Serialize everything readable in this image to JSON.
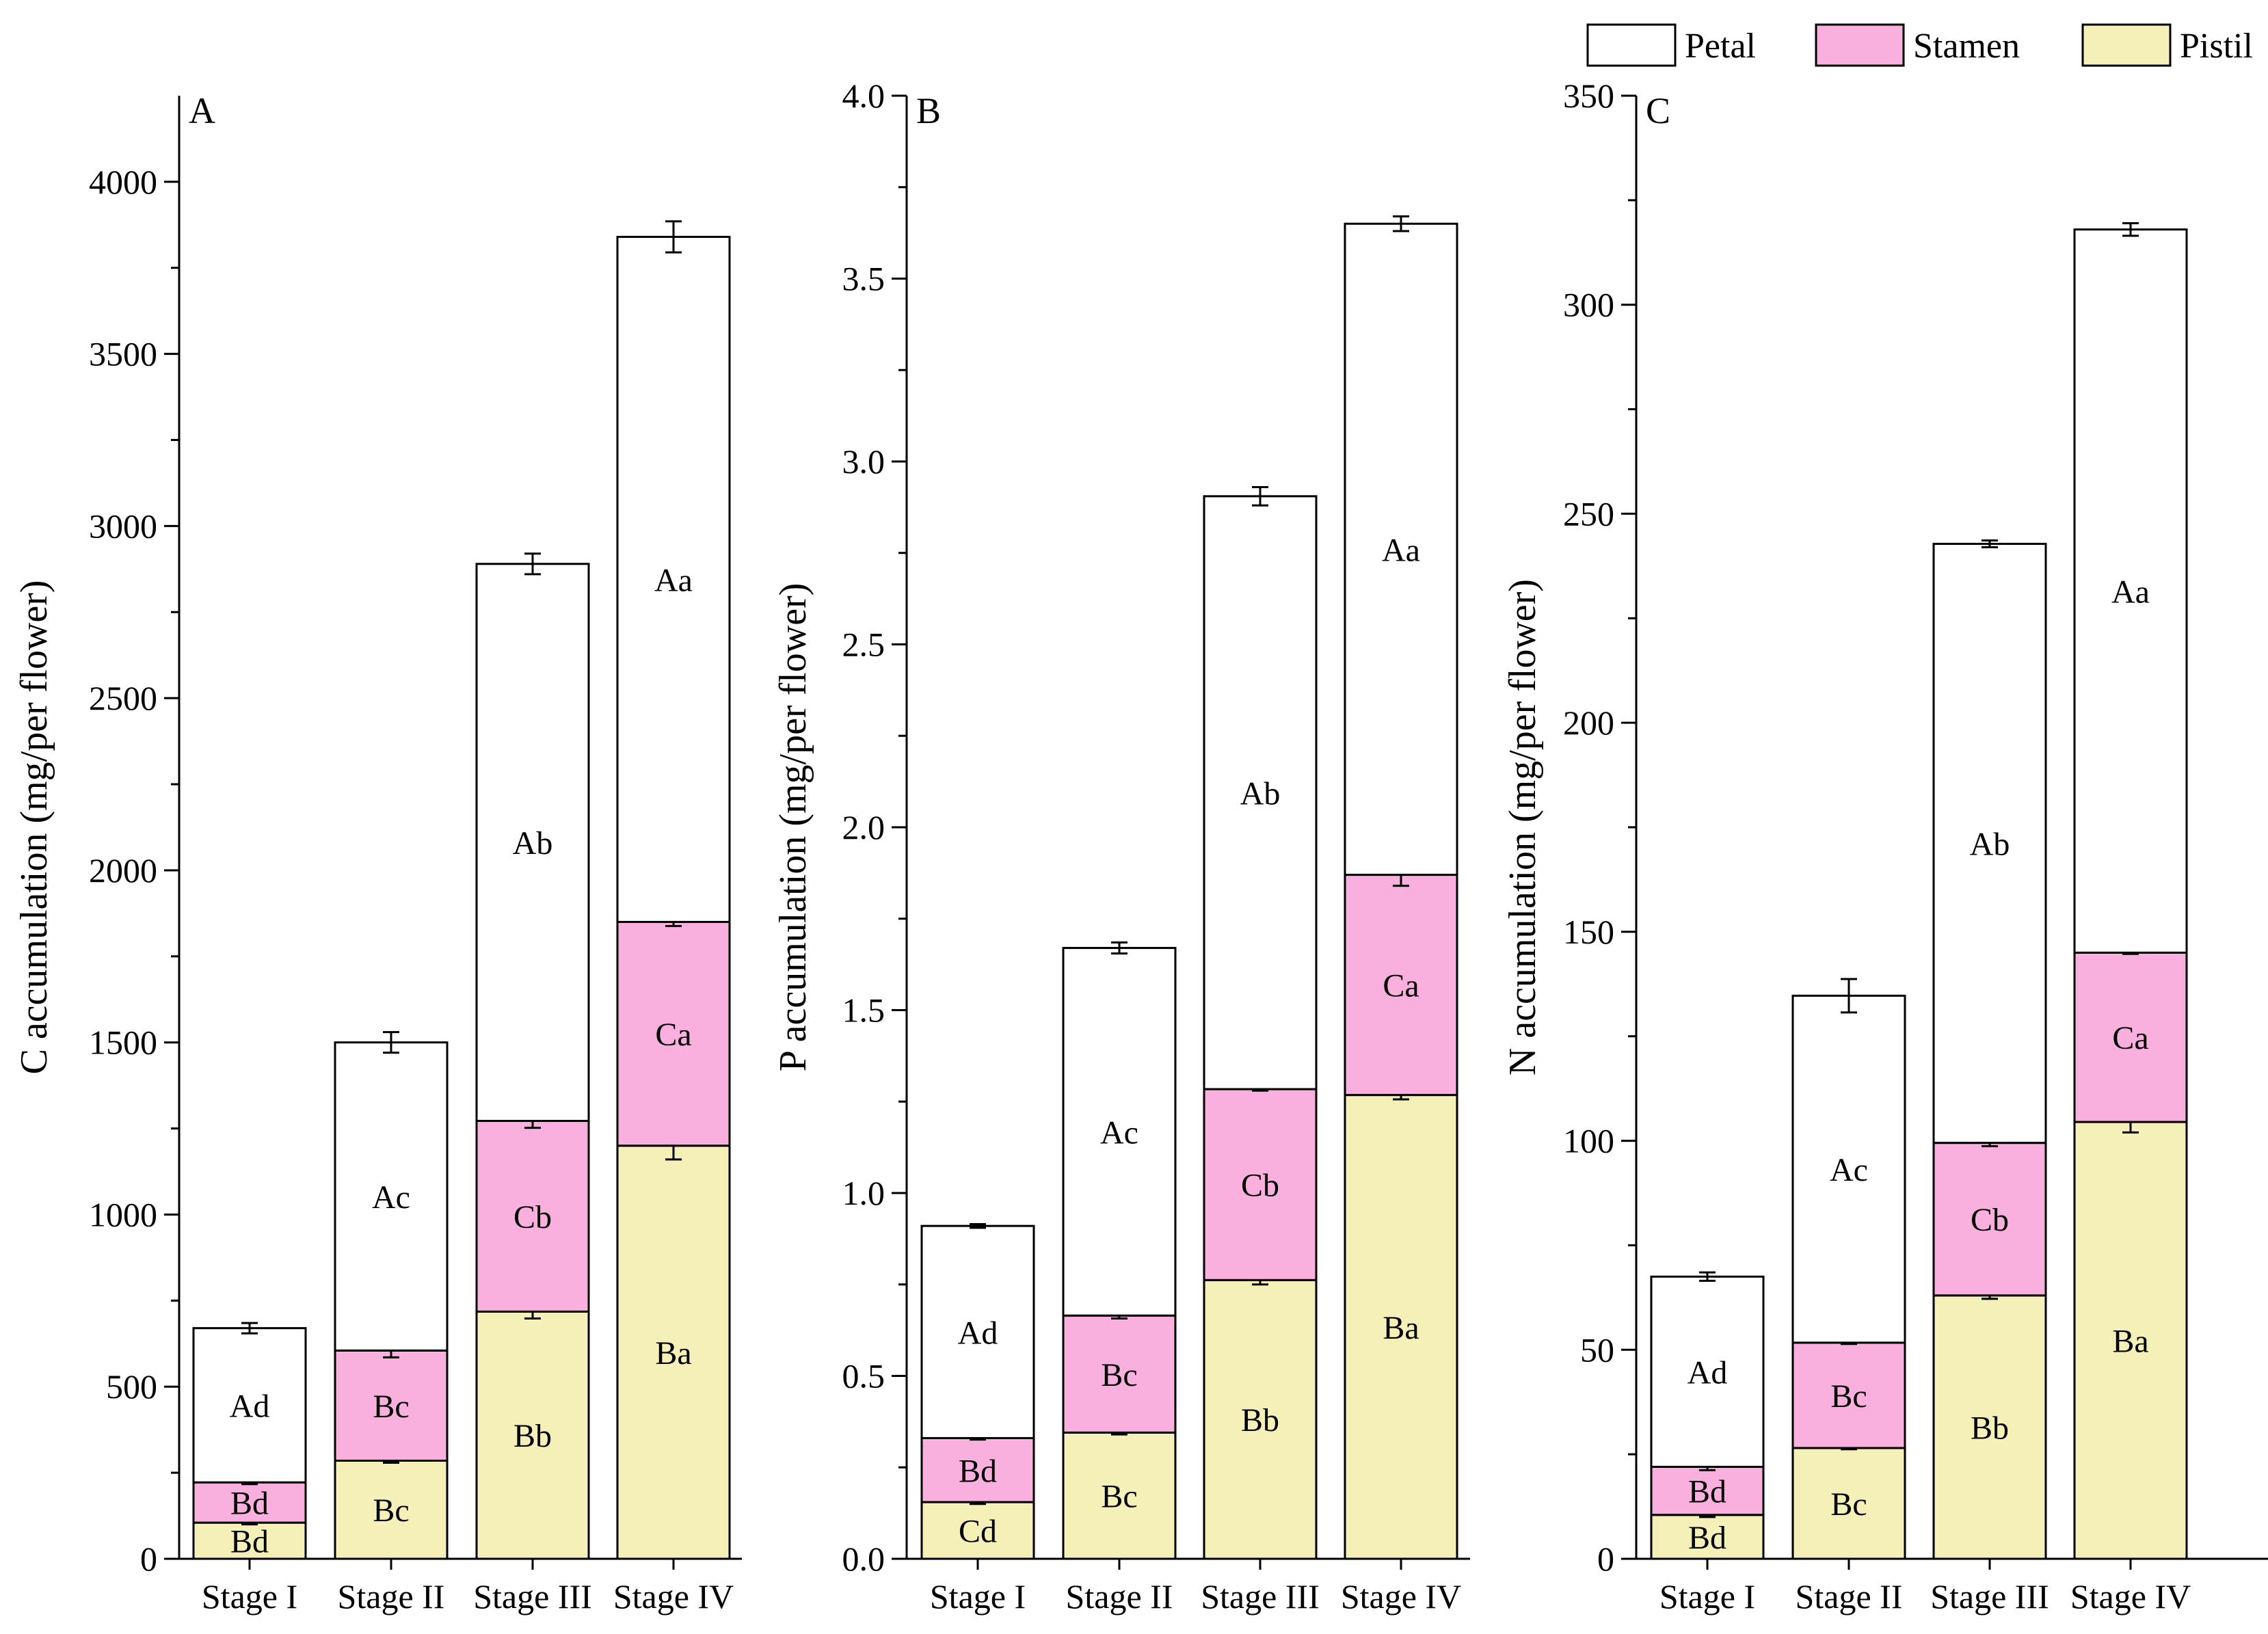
{
  "colors": {
    "Petal": "#ffffff",
    "Stamen": "#f9b0de",
    "Pistil": "#f5f0b8",
    "stroke": "#000000"
  },
  "legend": [
    {
      "name": "Petal",
      "label": "Petal",
      "color": "#ffffff"
    },
    {
      "name": "Stamen",
      "label": "Stamen",
      "color": "#f9b0de"
    },
    {
      "name": "Pistil",
      "label": "Pistil",
      "color": "#f5f0b8"
    }
  ],
  "chart_data": [
    {
      "type": "bar",
      "stacked": true,
      "panel": "A",
      "ylabel": "C accumulation (mg/per flower)",
      "ylim": [
        0,
        4250
      ],
      "yticks": [
        0,
        500,
        1000,
        1500,
        2000,
        2500,
        3000,
        3500,
        4000
      ],
      "ytick_labels": [
        "0",
        "500",
        "1000",
        "1500",
        "2000",
        "2500",
        "3000",
        "3500",
        "4000"
      ],
      "categories": [
        "Stage I",
        "Stage II",
        "Stage III",
        "Stage IV"
      ],
      "series": [
        {
          "name": "Pistil",
          "values": [
            105,
            285,
            718,
            1200
          ],
          "errors": [
            5,
            6,
            20,
            40
          ],
          "labels": [
            "Bd",
            "Bc",
            "Bb",
            "Ba"
          ]
        },
        {
          "name": "Stamen",
          "values": [
            117,
            320,
            554,
            650
          ],
          "errors": [
            5,
            20,
            20,
            12
          ],
          "labels": [
            "Bd",
            "Bc",
            "Cb",
            "Ca"
          ]
        },
        {
          "name": "Petal",
          "values": [
            448,
            895,
            1618,
            1990
          ],
          "errors": [
            15,
            30,
            30,
            45
          ],
          "labels": [
            "Ad",
            "Ac",
            "Ab",
            "Aa"
          ]
        }
      ]
    },
    {
      "type": "bar",
      "stacked": true,
      "panel": "B",
      "ylabel": "P accumulation (mg/per flower)",
      "ylim": [
        0,
        4.0
      ],
      "yticks": [
        0,
        0.5,
        1.0,
        1.5,
        2.0,
        2.5,
        3.0,
        3.5,
        4.0
      ],
      "ytick_labels": [
        "0.0",
        "0.5",
        "1.0",
        "1.5",
        "2.0",
        "2.5",
        "3.0",
        "3.5",
        "4.0"
      ],
      "categories": [
        "Stage I",
        "Stage II",
        "Stage III",
        "Stage IV"
      ],
      "series": [
        {
          "name": "Pistil",
          "values": [
            0.155,
            0.345,
            0.762,
            1.268
          ],
          "errors": [
            0.005,
            0.005,
            0.012,
            0.012
          ],
          "labels": [
            "Cd",
            "Bc",
            "Bb",
            "Ba"
          ]
        },
        {
          "name": "Stamen",
          "values": [
            0.175,
            0.32,
            0.522,
            0.602
          ],
          "errors": [
            0.004,
            0.008,
            0.004,
            0.03
          ],
          "labels": [
            "Bd",
            "Bc",
            "Cb",
            "Ca"
          ]
        },
        {
          "name": "Petal",
          "values": [
            0.58,
            1.005,
            1.621,
            1.78
          ],
          "errors": [
            0.005,
            0.015,
            0.025,
            0.02
          ],
          "labels": [
            "Ad",
            "Ac",
            "Ab",
            "Aa"
          ]
        }
      ]
    },
    {
      "type": "bar",
      "stacked": true,
      "panel": "C",
      "ylabel": "N accumulation (mg/per flower)",
      "ylim": [
        0,
        350
      ],
      "yticks": [
        0,
        50,
        100,
        150,
        200,
        250,
        300,
        350
      ],
      "ytick_labels": [
        "0",
        "50",
        "100",
        "150",
        "200",
        "250",
        "300",
        "350"
      ],
      "categories": [
        "Stage I",
        "Stage II",
        "Stage III",
        "Stage IV"
      ],
      "series": [
        {
          "name": "Pistil",
          "values": [
            10.5,
            26.5,
            63,
            104.5
          ],
          "errors": [
            0.5,
            0.3,
            0.8,
            2.5
          ],
          "labels": [
            "Bd",
            "Bc",
            "Bb",
            "Ba"
          ]
        },
        {
          "name": "Stamen",
          "values": [
            11.5,
            25.2,
            36.5,
            40.5
          ],
          "errors": [
            0.8,
            0.3,
            0.8,
            0.3
          ],
          "labels": [
            "Bd",
            "Bc",
            "Cb",
            "Ca"
          ]
        },
        {
          "name": "Petal",
          "values": [
            45.5,
            83,
            143.3,
            173
          ],
          "errors": [
            1,
            4,
            0.8,
            1.5
          ],
          "labels": [
            "Ad",
            "Ac",
            "Ab",
            "Aa"
          ]
        }
      ]
    }
  ]
}
